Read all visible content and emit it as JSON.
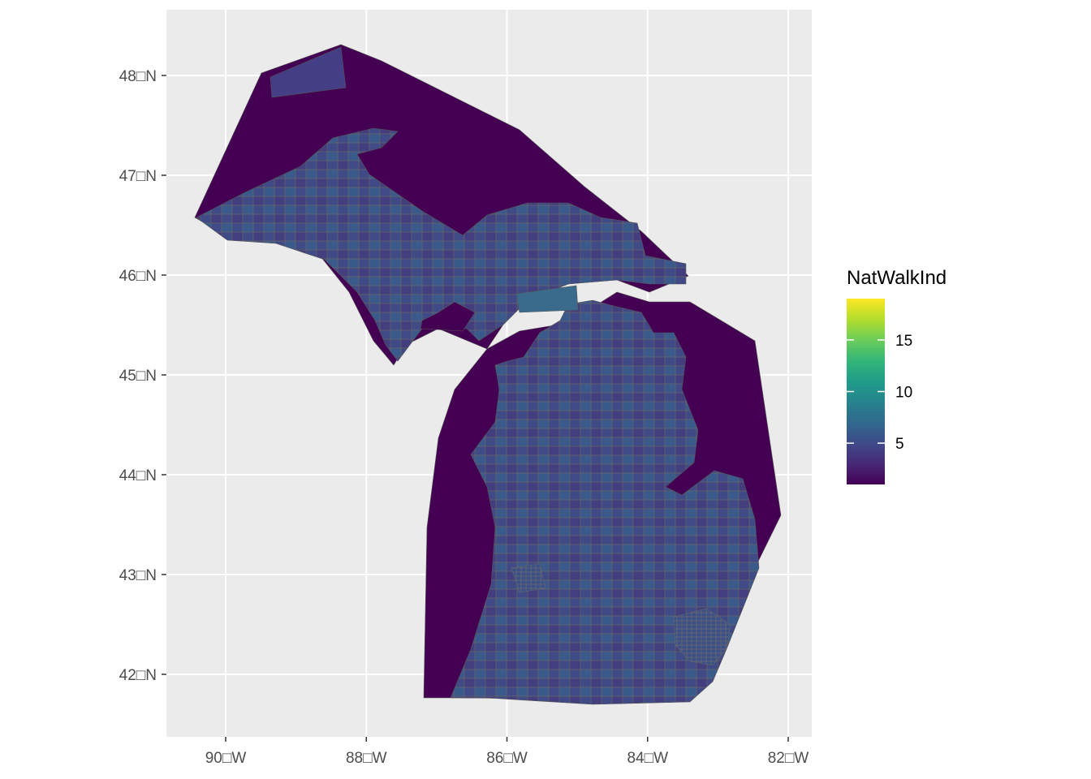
{
  "map": {
    "type": "choropleth",
    "region": "Michigan",
    "fill_variable": "NatWalkInd",
    "background": "#ebebeb",
    "grid_color": "#ffffff",
    "border_color": "#5a5a5a",
    "lon_ticks": [
      -90,
      -88,
      -86,
      -84,
      -82
    ],
    "lat_ticks": [
      42,
      43,
      44,
      45,
      46,
      47,
      48
    ],
    "x_tick_labels": [
      "90□W",
      "88□W",
      "86□W",
      "84□W",
      "82□W"
    ],
    "y_tick_labels": [
      "42□N",
      "43□N",
      "44□N",
      "45□N",
      "46□N",
      "47□N",
      "48□N"
    ]
  },
  "legend": {
    "title": "NatWalkInd",
    "labels": [
      "5",
      "10",
      "15"
    ],
    "range": [
      1,
      19
    ],
    "ticks": [
      5,
      10,
      15
    ],
    "palette": [
      "#440154",
      "#482878",
      "#3e4a89",
      "#31688e",
      "#26828e",
      "#1f9e89",
      "#35b779",
      "#6dcd59",
      "#b4de2c",
      "#fde725"
    ]
  }
}
